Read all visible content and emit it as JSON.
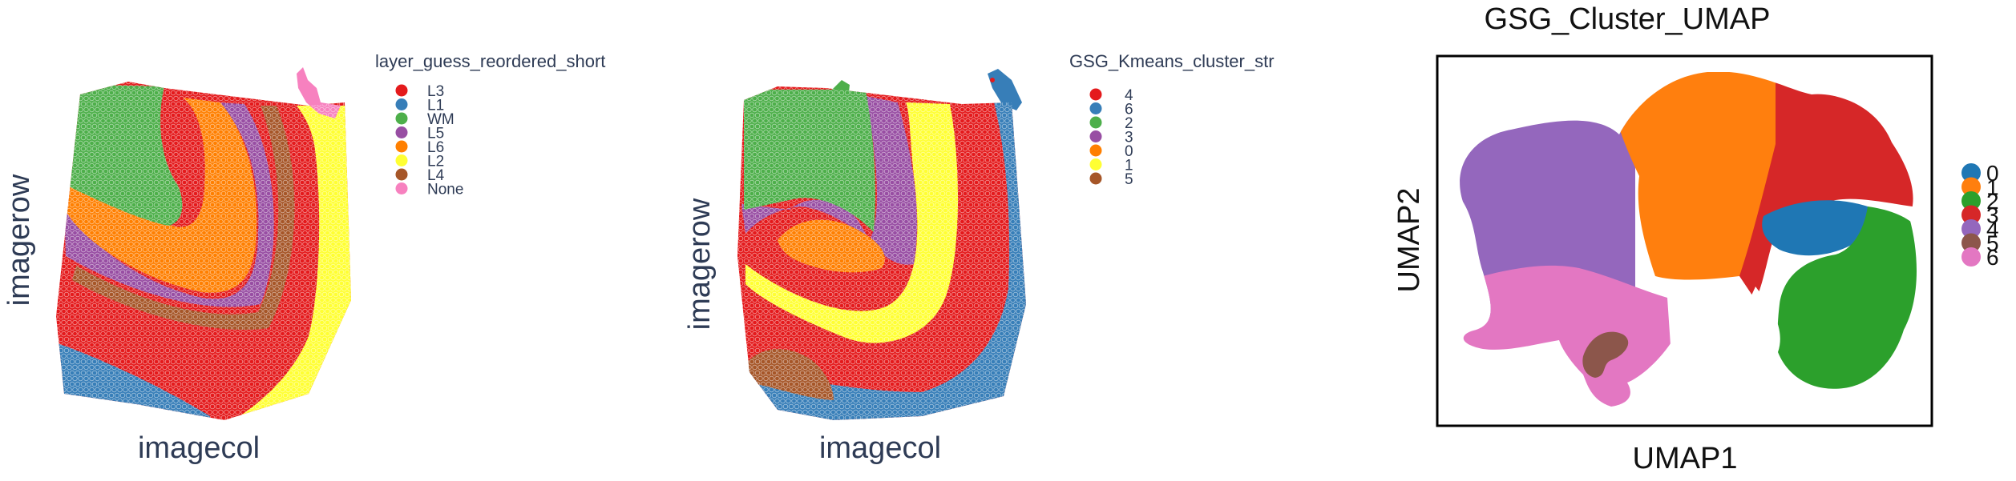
{
  "colors": {
    "red": "#e41a1c",
    "blue": "#377eb8",
    "green": "#4daf4a",
    "purple": "#984ea3",
    "orange": "#ff7f00",
    "yellow": "#ffff33",
    "brown": "#a65628",
    "pink": "#f781bf",
    "umap_blue": "#1f77b4",
    "umap_orange": "#ff7f0e",
    "umap_green": "#2ca02c",
    "umap_red": "#d62728",
    "umap_purple": "#9467bd",
    "umap_brown": "#8c564b",
    "umap_pink": "#e377c2"
  },
  "chart_data": [
    {
      "type": "scatter",
      "xlabel": "imagecol",
      "ylabel": "imagerow",
      "legend": {
        "title": "layer_guess_reordered_short",
        "placement": "right",
        "entries": [
          {
            "label": "L3",
            "color": "#e41a1c"
          },
          {
            "label": "L1",
            "color": "#377eb8"
          },
          {
            "label": "WM",
            "color": "#4daf4a"
          },
          {
            "label": "L5",
            "color": "#984ea3"
          },
          {
            "label": "L6",
            "color": "#ff7f00"
          },
          {
            "label": "L2",
            "color": "#ffff33"
          },
          {
            "label": "L4",
            "color": "#a65628"
          },
          {
            "label": "None",
            "color": "#f781bf"
          }
        ]
      },
      "grid": false
    },
    {
      "type": "scatter",
      "xlabel": "imagecol",
      "ylabel": "imagerow",
      "legend": {
        "title": "GSG_Kmeans_cluster_str",
        "placement": "right",
        "entries": [
          {
            "label": "4",
            "color": "#e41a1c"
          },
          {
            "label": "6",
            "color": "#377eb8"
          },
          {
            "label": "2",
            "color": "#4daf4a"
          },
          {
            "label": "3",
            "color": "#984ea3"
          },
          {
            "label": "0",
            "color": "#ff7f00"
          },
          {
            "label": "1",
            "color": "#ffff33"
          },
          {
            "label": "5",
            "color": "#a65628"
          }
        ]
      },
      "grid": false
    },
    {
      "type": "scatter",
      "title": "GSG_Cluster_UMAP",
      "xlabel": "UMAP1",
      "ylabel": "UMAP2",
      "legend": {
        "placement": "right",
        "entries": [
          {
            "label": "0",
            "color": "#1f77b4"
          },
          {
            "label": "1",
            "color": "#ff7f0e"
          },
          {
            "label": "2",
            "color": "#2ca02c"
          },
          {
            "label": "3",
            "color": "#d62728"
          },
          {
            "label": "4",
            "color": "#9467bd"
          },
          {
            "label": "5",
            "color": "#8c564b"
          },
          {
            "label": "6",
            "color": "#e377c2"
          }
        ]
      },
      "grid": false
    }
  ]
}
